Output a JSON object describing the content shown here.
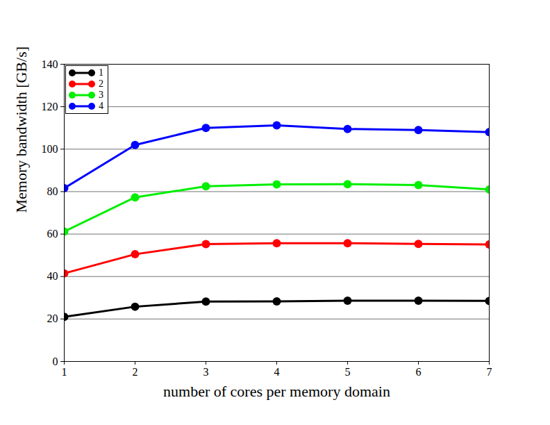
{
  "chart_data": {
    "type": "line",
    "x_label": "number of cores per memory domain",
    "y_label": "Memory bandwidth [GB/s]",
    "x": [
      1,
      2,
      3,
      4,
      5,
      6,
      7
    ],
    "series": [
      {
        "name": "1",
        "color": "#000000",
        "values": [
          21.0,
          25.8,
          28.2,
          28.3,
          28.6,
          28.6,
          28.5
        ]
      },
      {
        "name": "2",
        "color": "#ff0000",
        "values": [
          41.5,
          50.5,
          55.3,
          55.7,
          55.7,
          55.4,
          55.1
        ]
      },
      {
        "name": "3",
        "color": "#00ee00",
        "values": [
          61.2,
          77.3,
          82.5,
          83.4,
          83.5,
          83.1,
          81.0
        ]
      },
      {
        "name": "4",
        "color": "#0000ff",
        "values": [
          81.6,
          102.0,
          110.0,
          111.2,
          109.5,
          109.0,
          108.0
        ]
      }
    ],
    "xlim": [
      1,
      7
    ],
    "xticks": [
      1,
      2,
      3,
      4,
      5,
      6,
      7
    ],
    "ylim": [
      0,
      140
    ],
    "yticks": [
      0,
      20,
      40,
      60,
      80,
      100,
      120,
      140
    ],
    "grid": true,
    "legend": "upper left",
    "marker": "circle",
    "line_style": "solid"
  }
}
